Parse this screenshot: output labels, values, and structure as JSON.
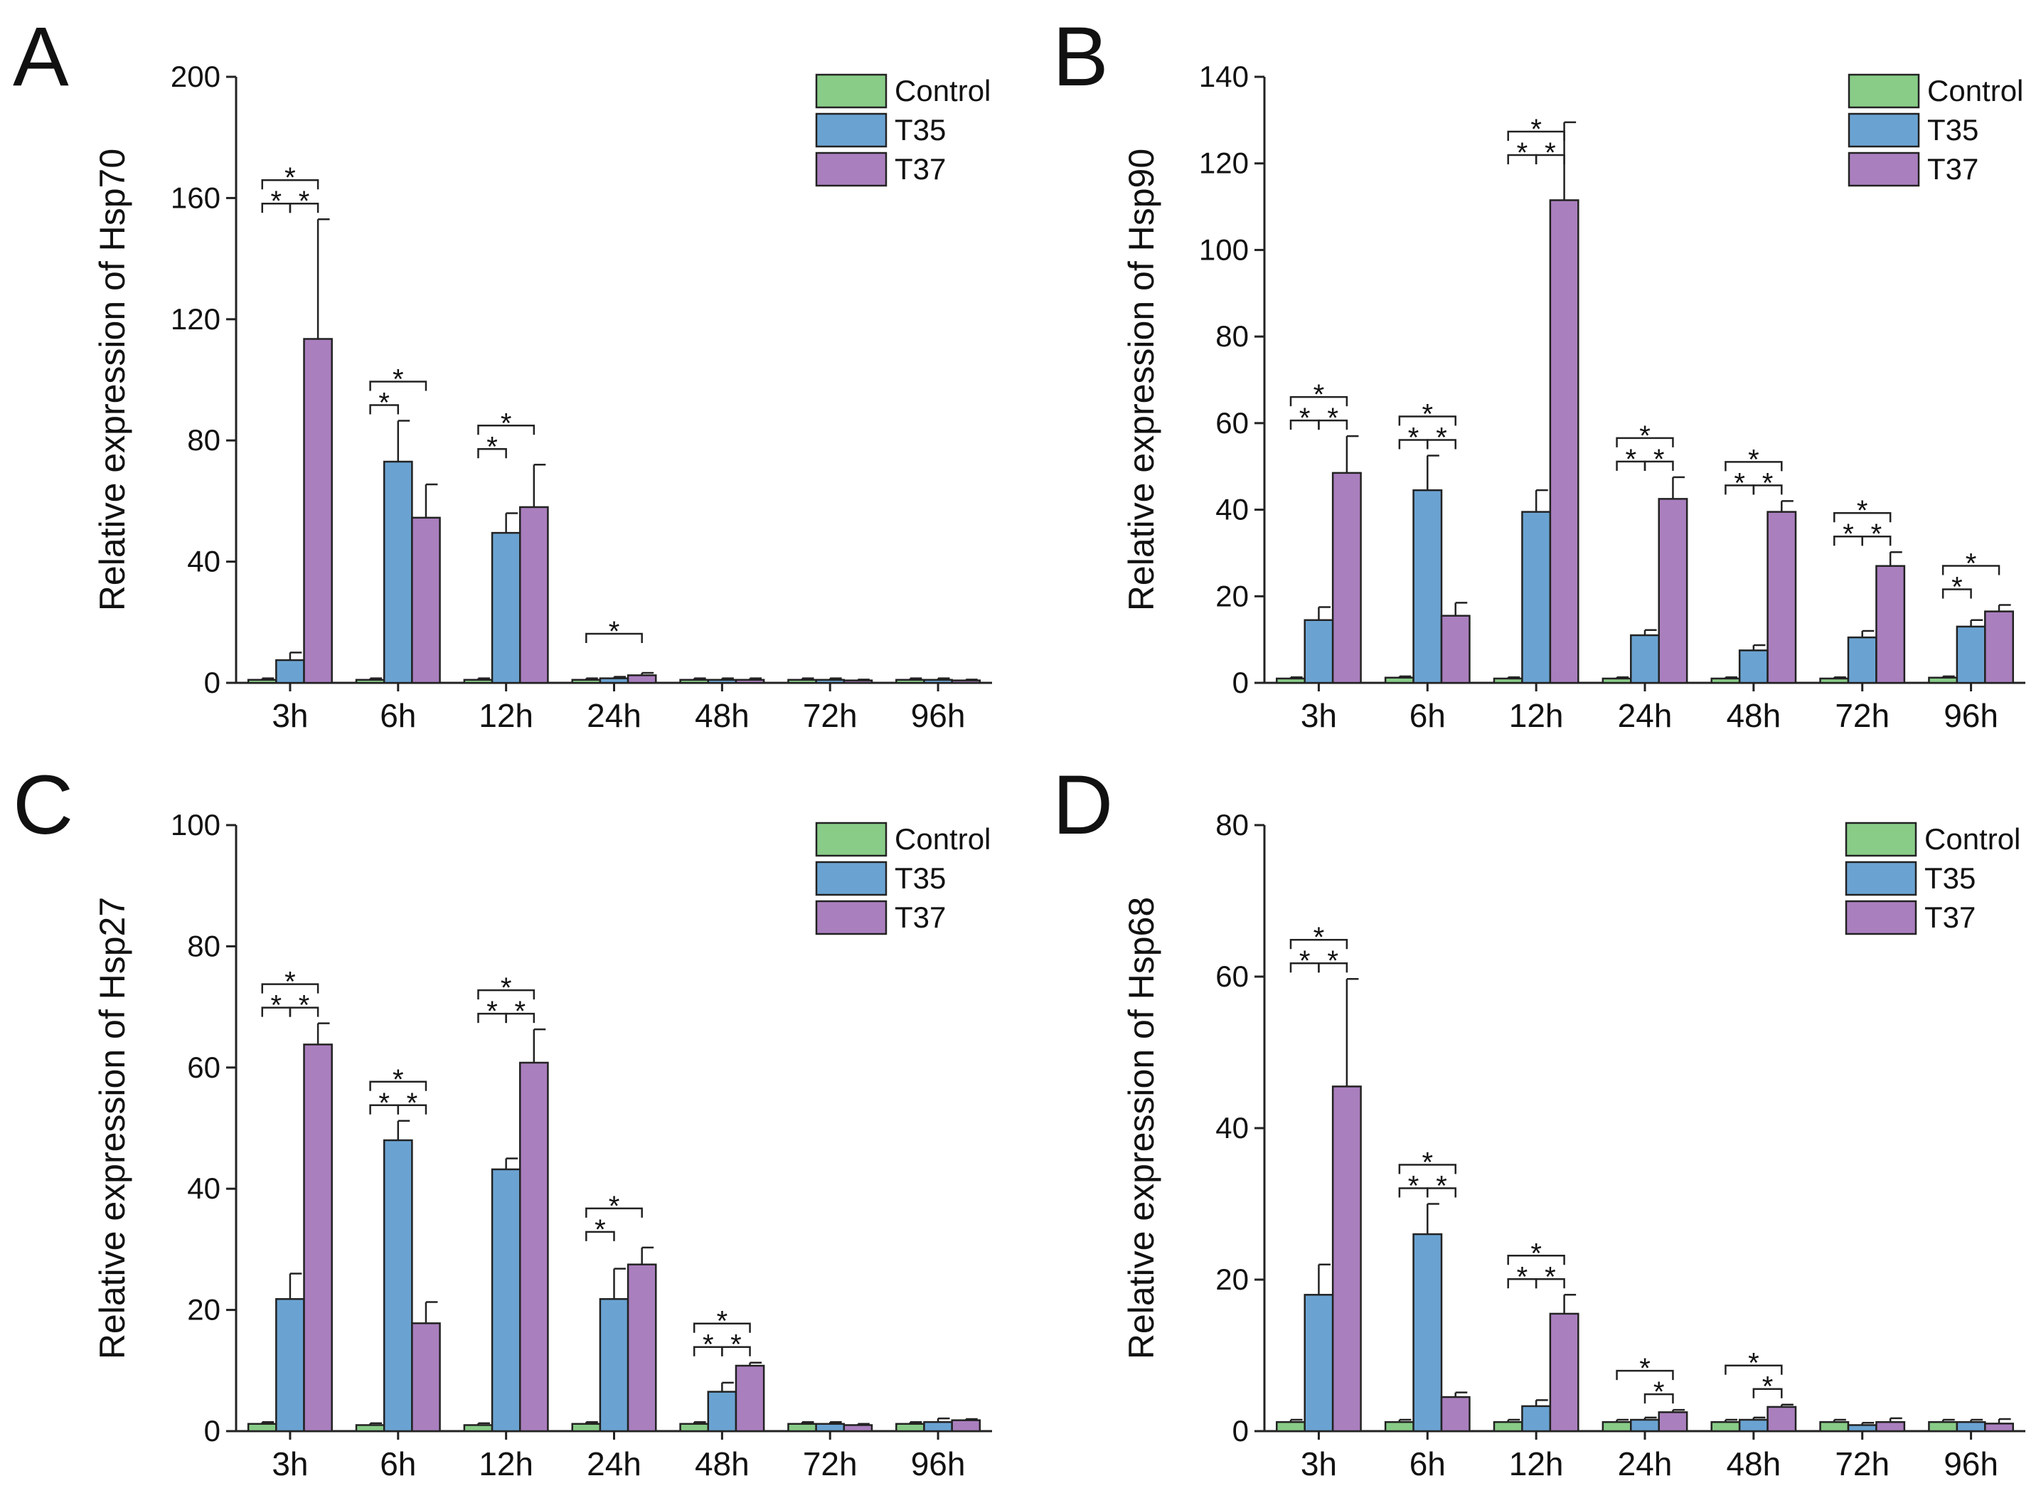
{
  "colors": {
    "Control": "#88cc88",
    "T35": "#6aa3d2",
    "T37": "#aa7fbe",
    "axis": "#222222"
  },
  "chart_data": [
    {
      "type": "bar",
      "panel": "A",
      "ylabel": "Relative expression of Hsp70",
      "ylim": [
        0,
        200
      ],
      "yticks": [
        0,
        40,
        80,
        120,
        160,
        200
      ],
      "categories": [
        "3h",
        "6h",
        "12h",
        "24h",
        "48h",
        "72h",
        "96h"
      ],
      "legend": [
        "Control",
        "T35",
        "T37"
      ],
      "legend_position": "top-right",
      "series": [
        {
          "name": "Control",
          "values": [
            1,
            1,
            1,
            1,
            1,
            1,
            1
          ],
          "errors": [
            0.5,
            0.5,
            0.5,
            0.5,
            0.5,
            0.5,
            0.5
          ]
        },
        {
          "name": "T35",
          "values": [
            7.5,
            73,
            49.5,
            1.5,
            1,
            1,
            1
          ],
          "errors": [
            2.5,
            13.5,
            6.5,
            0.5,
            0.5,
            0.5,
            0.5
          ]
        },
        {
          "name": "T37",
          "values": [
            113.5,
            54.5,
            58,
            2.5,
            1,
            0.8,
            0.8
          ],
          "errors": [
            39.5,
            11,
            14,
            0.8,
            0.5,
            0.3,
            0.3
          ]
        }
      ],
      "significance": [
        {
          "category": 0,
          "pairs": [
            [
              0,
              1
            ],
            [
              1,
              2
            ],
            [
              0,
              2
            ]
          ]
        },
        {
          "category": 1,
          "pairs": [
            [
              0,
              1
            ],
            [
              0,
              2
            ]
          ]
        },
        {
          "category": 2,
          "pairs": [
            [
              0,
              1
            ],
            [
              0,
              2
            ]
          ]
        },
        {
          "category": 3,
          "pairs": [
            [
              0,
              2
            ]
          ]
        }
      ],
      "sig_label": "*"
    },
    {
      "type": "bar",
      "panel": "B",
      "ylabel": "Relative expression of Hsp90",
      "ylim": [
        0,
        140
      ],
      "yticks": [
        0,
        20,
        40,
        60,
        80,
        100,
        120,
        140
      ],
      "categories": [
        "3h",
        "6h",
        "12h",
        "24h",
        "48h",
        "72h",
        "96h"
      ],
      "legend": [
        "Control",
        "T35",
        "T37"
      ],
      "legend_position": "top-right",
      "series": [
        {
          "name": "Control",
          "values": [
            1,
            1.2,
            1,
            1,
            1,
            1,
            1.2
          ],
          "errors": [
            0.3,
            0.3,
            0.3,
            0.3,
            0.3,
            0.3,
            0.3
          ]
        },
        {
          "name": "T35",
          "values": [
            14.5,
            44.5,
            39.5,
            11,
            7.5,
            10.5,
            13
          ],
          "errors": [
            3,
            8,
            5,
            1.2,
            1.2,
            1.5,
            1.5
          ]
        },
        {
          "name": "T37",
          "values": [
            48.5,
            15.5,
            111.5,
            42.5,
            39.5,
            27,
            16.5
          ],
          "errors": [
            8.5,
            3,
            18,
            5,
            2.5,
            3.2,
            1.5
          ]
        }
      ],
      "significance": [
        {
          "category": 0,
          "pairs": [
            [
              0,
              1
            ],
            [
              1,
              2
            ],
            [
              0,
              2
            ]
          ]
        },
        {
          "category": 1,
          "pairs": [
            [
              0,
              1
            ],
            [
              1,
              2
            ],
            [
              0,
              2
            ]
          ]
        },
        {
          "category": 2,
          "pairs": [
            [
              0,
              1
            ],
            [
              1,
              2
            ],
            [
              0,
              2
            ]
          ]
        },
        {
          "category": 3,
          "pairs": [
            [
              0,
              1
            ],
            [
              1,
              2
            ],
            [
              0,
              2
            ]
          ]
        },
        {
          "category": 4,
          "pairs": [
            [
              0,
              1
            ],
            [
              1,
              2
            ],
            [
              0,
              2
            ]
          ]
        },
        {
          "category": 5,
          "pairs": [
            [
              0,
              1
            ],
            [
              1,
              2
            ],
            [
              0,
              2
            ]
          ]
        },
        {
          "category": 6,
          "pairs": [
            [
              0,
              1
            ],
            [
              0,
              2
            ]
          ]
        }
      ],
      "sig_label": "*"
    },
    {
      "type": "bar",
      "panel": "C",
      "ylabel": "Relative expression of Hsp27",
      "ylim": [
        0,
        100
      ],
      "yticks": [
        0,
        20,
        40,
        60,
        80,
        100
      ],
      "categories": [
        "3h",
        "6h",
        "12h",
        "24h",
        "48h",
        "72h",
        "96h"
      ],
      "legend": [
        "Control",
        "T35",
        "T37"
      ],
      "legend_position": "top-right",
      "series": [
        {
          "name": "Control",
          "values": [
            1.2,
            1,
            1,
            1.2,
            1.2,
            1.2,
            1.2
          ],
          "errors": [
            0.3,
            0.3,
            0.3,
            0.3,
            0.3,
            0.3,
            0.3
          ]
        },
        {
          "name": "T35",
          "values": [
            21.8,
            48,
            43.2,
            21.8,
            6.5,
            1.2,
            1.5
          ],
          "errors": [
            4.2,
            3.2,
            1.8,
            5,
            1.5,
            0.3,
            0.6
          ]
        },
        {
          "name": "T37",
          "values": [
            63.8,
            17.8,
            60.8,
            27.5,
            10.8,
            1,
            1.8
          ],
          "errors": [
            3.5,
            3.5,
            5.5,
            2.8,
            0.5,
            0.2,
            0.2
          ]
        }
      ],
      "significance": [
        {
          "category": 0,
          "pairs": [
            [
              0,
              1
            ],
            [
              1,
              2
            ],
            [
              0,
              2
            ]
          ]
        },
        {
          "category": 1,
          "pairs": [
            [
              0,
              1
            ],
            [
              1,
              2
            ],
            [
              0,
              2
            ]
          ]
        },
        {
          "category": 2,
          "pairs": [
            [
              0,
              1
            ],
            [
              1,
              2
            ],
            [
              0,
              2
            ]
          ]
        },
        {
          "category": 3,
          "pairs": [
            [
              0,
              1
            ],
            [
              0,
              2
            ]
          ]
        },
        {
          "category": 4,
          "pairs": [
            [
              0,
              1
            ],
            [
              1,
              2
            ],
            [
              0,
              2
            ]
          ]
        }
      ],
      "sig_label": "*"
    },
    {
      "type": "bar",
      "panel": "D",
      "ylabel": "Relative expression of Hsp68",
      "ylim": [
        0,
        80
      ],
      "yticks": [
        0,
        20,
        40,
        60,
        80
      ],
      "categories": [
        "3h",
        "6h",
        "12h",
        "24h",
        "48h",
        "72h",
        "96h"
      ],
      "legend": [
        "Control",
        "T35",
        "T37"
      ],
      "legend_position": "top-right",
      "series": [
        {
          "name": "Control",
          "values": [
            1.2,
            1.2,
            1.2,
            1.2,
            1.2,
            1.2,
            1.2
          ],
          "errors": [
            0.3,
            0.3,
            0.3,
            0.3,
            0.3,
            0.3,
            0.3
          ]
        },
        {
          "name": "T35",
          "values": [
            18,
            26,
            3.3,
            1.5,
            1.5,
            0.8,
            1.2
          ],
          "errors": [
            4,
            4,
            0.8,
            0.3,
            0.3,
            0.3,
            0.3
          ]
        },
        {
          "name": "T37",
          "values": [
            45.5,
            4.5,
            15.5,
            2.5,
            3.2,
            1.2,
            1
          ],
          "errors": [
            14.2,
            0.6,
            2.5,
            0.3,
            0.3,
            0.5,
            0.6
          ]
        }
      ],
      "significance": [
        {
          "category": 0,
          "pairs": [
            [
              0,
              1
            ],
            [
              1,
              2
            ],
            [
              0,
              2
            ]
          ]
        },
        {
          "category": 1,
          "pairs": [
            [
              0,
              1
            ],
            [
              1,
              2
            ],
            [
              0,
              2
            ]
          ]
        },
        {
          "category": 2,
          "pairs": [
            [
              0,
              1
            ],
            [
              1,
              2
            ],
            [
              0,
              2
            ]
          ]
        },
        {
          "category": 3,
          "pairs": [
            [
              1,
              2
            ],
            [
              0,
              2
            ]
          ]
        },
        {
          "category": 4,
          "pairs": [
            [
              1,
              2
            ],
            [
              0,
              2
            ]
          ]
        }
      ],
      "sig_label": "*"
    }
  ]
}
